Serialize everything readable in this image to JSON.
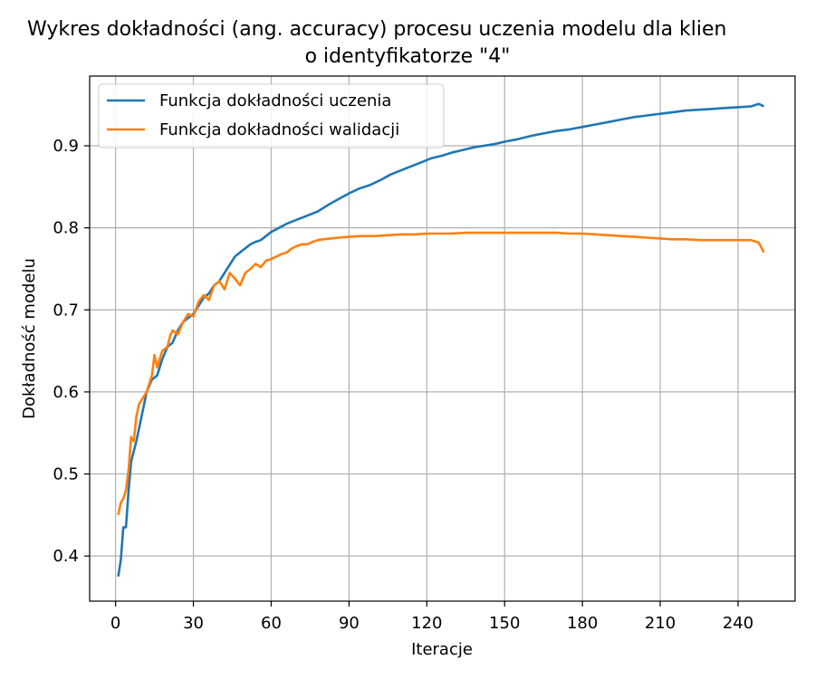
{
  "chart_data": {
    "type": "line",
    "title": "Wykres dokładności (ang. accuracy) procesu uczenia modelu dla klien",
    "subtitle": "o identyfikatorze \"4\"",
    "xlabel": "Iteracje",
    "ylabel": "Dokładność modelu",
    "xlim": [
      -10,
      262
    ],
    "ylim": [
      0.345,
      0.985
    ],
    "xticks": [
      0,
      30,
      60,
      90,
      120,
      150,
      180,
      210,
      240
    ],
    "yticks": [
      0.4,
      0.5,
      0.6,
      0.7,
      0.8,
      0.9
    ],
    "ytick_labels": [
      "0.4",
      "0.5",
      "0.6",
      "0.7",
      "0.8",
      "0.9"
    ],
    "grid": true,
    "legend_position": "top-left",
    "series": [
      {
        "name": "Funkcja dokładności uczenia",
        "color": "#1f77b4",
        "points": [
          [
            1,
            0.375
          ],
          [
            2,
            0.395
          ],
          [
            3,
            0.435
          ],
          [
            4,
            0.435
          ],
          [
            5,
            0.48
          ],
          [
            6,
            0.515
          ],
          [
            8,
            0.54
          ],
          [
            10,
            0.57
          ],
          [
            12,
            0.6
          ],
          [
            14,
            0.615
          ],
          [
            16,
            0.62
          ],
          [
            18,
            0.64
          ],
          [
            20,
            0.655
          ],
          [
            22,
            0.66
          ],
          [
            24,
            0.675
          ],
          [
            26,
            0.685
          ],
          [
            28,
            0.69
          ],
          [
            30,
            0.695
          ],
          [
            32,
            0.705
          ],
          [
            34,
            0.715
          ],
          [
            36,
            0.72
          ],
          [
            38,
            0.73
          ],
          [
            40,
            0.735
          ],
          [
            42,
            0.745
          ],
          [
            44,
            0.755
          ],
          [
            46,
            0.765
          ],
          [
            48,
            0.77
          ],
          [
            50,
            0.775
          ],
          [
            52,
            0.78
          ],
          [
            54,
            0.783
          ],
          [
            56,
            0.785
          ],
          [
            58,
            0.79
          ],
          [
            60,
            0.795
          ],
          [
            63,
            0.8
          ],
          [
            66,
            0.805
          ],
          [
            70,
            0.81
          ],
          [
            74,
            0.815
          ],
          [
            78,
            0.82
          ],
          [
            82,
            0.828
          ],
          [
            86,
            0.835
          ],
          [
            90,
            0.842
          ],
          [
            94,
            0.848
          ],
          [
            98,
            0.852
          ],
          [
            102,
            0.858
          ],
          [
            106,
            0.865
          ],
          [
            110,
            0.87
          ],
          [
            114,
            0.875
          ],
          [
            118,
            0.88
          ],
          [
            122,
            0.885
          ],
          [
            126,
            0.888
          ],
          [
            130,
            0.892
          ],
          [
            134,
            0.895
          ],
          [
            138,
            0.898
          ],
          [
            142,
            0.9
          ],
          [
            146,
            0.902
          ],
          [
            150,
            0.905
          ],
          [
            155,
            0.908
          ],
          [
            160,
            0.912
          ],
          [
            165,
            0.915
          ],
          [
            170,
            0.918
          ],
          [
            175,
            0.92
          ],
          [
            180,
            0.923
          ],
          [
            185,
            0.926
          ],
          [
            190,
            0.929
          ],
          [
            195,
            0.932
          ],
          [
            200,
            0.935
          ],
          [
            205,
            0.937
          ],
          [
            210,
            0.939
          ],
          [
            215,
            0.941
          ],
          [
            220,
            0.943
          ],
          [
            225,
            0.944
          ],
          [
            230,
            0.945
          ],
          [
            235,
            0.946
          ],
          [
            240,
            0.947
          ],
          [
            245,
            0.948
          ],
          [
            248,
            0.951
          ],
          [
            250,
            0.948
          ]
        ]
      },
      {
        "name": "Funkcja dokładności walidacji",
        "color": "#ff7f0e",
        "points": [
          [
            1,
            0.45
          ],
          [
            2,
            0.465
          ],
          [
            3,
            0.47
          ],
          [
            4,
            0.48
          ],
          [
            5,
            0.505
          ],
          [
            6,
            0.545
          ],
          [
            7,
            0.54
          ],
          [
            8,
            0.57
          ],
          [
            9,
            0.585
          ],
          [
            10,
            0.59
          ],
          [
            12,
            0.6
          ],
          [
            14,
            0.62
          ],
          [
            15,
            0.645
          ],
          [
            16,
            0.63
          ],
          [
            18,
            0.65
          ],
          [
            20,
            0.655
          ],
          [
            21,
            0.668
          ],
          [
            22,
            0.675
          ],
          [
            24,
            0.67
          ],
          [
            26,
            0.685
          ],
          [
            28,
            0.695
          ],
          [
            30,
            0.692
          ],
          [
            32,
            0.71
          ],
          [
            34,
            0.718
          ],
          [
            36,
            0.712
          ],
          [
            38,
            0.73
          ],
          [
            40,
            0.735
          ],
          [
            42,
            0.725
          ],
          [
            44,
            0.745
          ],
          [
            46,
            0.738
          ],
          [
            48,
            0.73
          ],
          [
            50,
            0.745
          ],
          [
            52,
            0.75
          ],
          [
            54,
            0.756
          ],
          [
            56,
            0.752
          ],
          [
            58,
            0.76
          ],
          [
            60,
            0.762
          ],
          [
            62,
            0.765
          ],
          [
            64,
            0.768
          ],
          [
            66,
            0.77
          ],
          [
            68,
            0.775
          ],
          [
            70,
            0.778
          ],
          [
            72,
            0.78
          ],
          [
            74,
            0.78
          ],
          [
            76,
            0.783
          ],
          [
            78,
            0.785
          ],
          [
            80,
            0.786
          ],
          [
            83,
            0.787
          ],
          [
            86,
            0.788
          ],
          [
            90,
            0.789
          ],
          [
            95,
            0.79
          ],
          [
            100,
            0.79
          ],
          [
            105,
            0.791
          ],
          [
            110,
            0.792
          ],
          [
            115,
            0.792
          ],
          [
            120,
            0.793
          ],
          [
            125,
            0.793
          ],
          [
            130,
            0.793
          ],
          [
            135,
            0.794
          ],
          [
            140,
            0.794
          ],
          [
            145,
            0.794
          ],
          [
            150,
            0.794
          ],
          [
            155,
            0.794
          ],
          [
            160,
            0.794
          ],
          [
            165,
            0.794
          ],
          [
            170,
            0.794
          ],
          [
            175,
            0.793
          ],
          [
            180,
            0.793
          ],
          [
            185,
            0.792
          ],
          [
            190,
            0.791
          ],
          [
            195,
            0.79
          ],
          [
            200,
            0.789
          ],
          [
            205,
            0.788
          ],
          [
            210,
            0.787
          ],
          [
            215,
            0.786
          ],
          [
            220,
            0.786
          ],
          [
            225,
            0.785
          ],
          [
            230,
            0.785
          ],
          [
            235,
            0.785
          ],
          [
            240,
            0.785
          ],
          [
            245,
            0.785
          ],
          [
            248,
            0.782
          ],
          [
            250,
            0.77
          ]
        ]
      }
    ]
  }
}
